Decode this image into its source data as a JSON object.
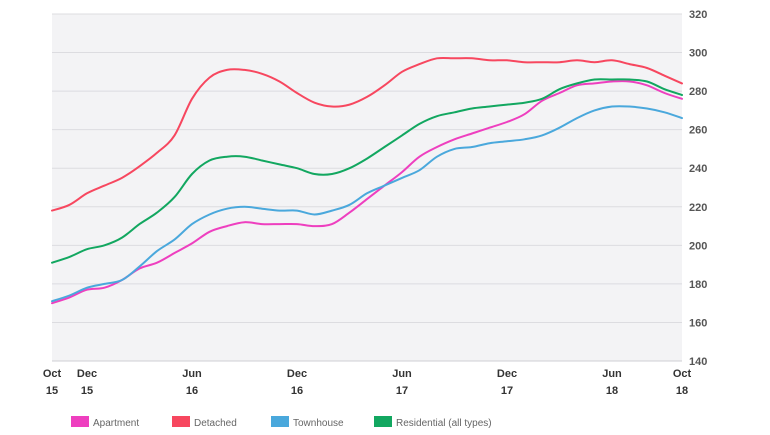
{
  "chart_data": {
    "type": "line",
    "title": "",
    "xlabel": "",
    "ylabel": "",
    "ylim": [
      140,
      320
    ],
    "yticks": [
      140,
      160,
      180,
      200,
      220,
      240,
      260,
      280,
      300,
      320
    ],
    "grid": true,
    "legend_position": "bottom-left",
    "xticks": [
      {
        "month": 0,
        "top": "Oct",
        "bottom": "15"
      },
      {
        "month": 2,
        "top": "Dec",
        "bottom": "15"
      },
      {
        "month": 8,
        "top": "Jun",
        "bottom": "16"
      },
      {
        "month": 14,
        "top": "Dec",
        "bottom": "16"
      },
      {
        "month": 20,
        "top": "Jun",
        "bottom": "17"
      },
      {
        "month": 26,
        "top": "Dec",
        "bottom": "17"
      },
      {
        "month": 32,
        "top": "Jun",
        "bottom": "18"
      },
      {
        "month": 36,
        "top": "Oct",
        "bottom": "18"
      }
    ],
    "x": [
      "Oct 15",
      "Nov 15",
      "Dec 15",
      "Jan 16",
      "Feb 16",
      "Mar 16",
      "Apr 16",
      "May 16",
      "Jun 16",
      "Jul 16",
      "Aug 16",
      "Sep 16",
      "Oct 16",
      "Nov 16",
      "Dec 16",
      "Jan 17",
      "Feb 17",
      "Mar 17",
      "Apr 17",
      "May 17",
      "Jun 17",
      "Jul 17",
      "Aug 17",
      "Sep 17",
      "Oct 17",
      "Nov 17",
      "Dec 17",
      "Jan 18",
      "Feb 18",
      "Mar 18",
      "Apr 18",
      "May 18",
      "Jun 18",
      "Jul 18",
      "Aug 18",
      "Sep 18",
      "Oct 18"
    ],
    "series": [
      {
        "name": "Apartment",
        "color": "#ee3fbf",
        "values": [
          170,
          173,
          177,
          178,
          182,
          188,
          191,
          196,
          201,
          207,
          210,
          212,
          211,
          211,
          211,
          210,
          211,
          217,
          224,
          231,
          238,
          246,
          251,
          255,
          258,
          261,
          264,
          268,
          275,
          279,
          283,
          284,
          285,
          285,
          283,
          279,
          276
        ]
      },
      {
        "name": "Detached",
        "color": "#f7475f",
        "values": [
          218,
          221,
          227,
          231,
          235,
          241,
          248,
          257,
          276,
          287,
          291,
          291,
          289,
          285,
          279,
          274,
          272,
          273,
          277,
          283,
          290,
          294,
          297,
          297,
          297,
          296,
          296,
          295,
          295,
          295,
          296,
          295,
          296,
          294,
          292,
          288,
          284
        ]
      },
      {
        "name": "Townhouse",
        "color": "#4aa8dc",
        "values": [
          171,
          174,
          178,
          180,
          182,
          189,
          197,
          203,
          211,
          216,
          219,
          220,
          219,
          218,
          218,
          216,
          218,
          221,
          227,
          231,
          235,
          239,
          246,
          250,
          251,
          253,
          254,
          255,
          257,
          261,
          266,
          270,
          272,
          272,
          271,
          269,
          266
        ]
      },
      {
        "name": "Residential (all types)",
        "color": "#12a760",
        "values": [
          191,
          194,
          198,
          200,
          204,
          211,
          217,
          225,
          237,
          244,
          246,
          246,
          244,
          242,
          240,
          237,
          237,
          240,
          245,
          251,
          257,
          263,
          267,
          269,
          271,
          272,
          273,
          274,
          276,
          281,
          284,
          286,
          286,
          286,
          285,
          281,
          278
        ]
      }
    ]
  }
}
